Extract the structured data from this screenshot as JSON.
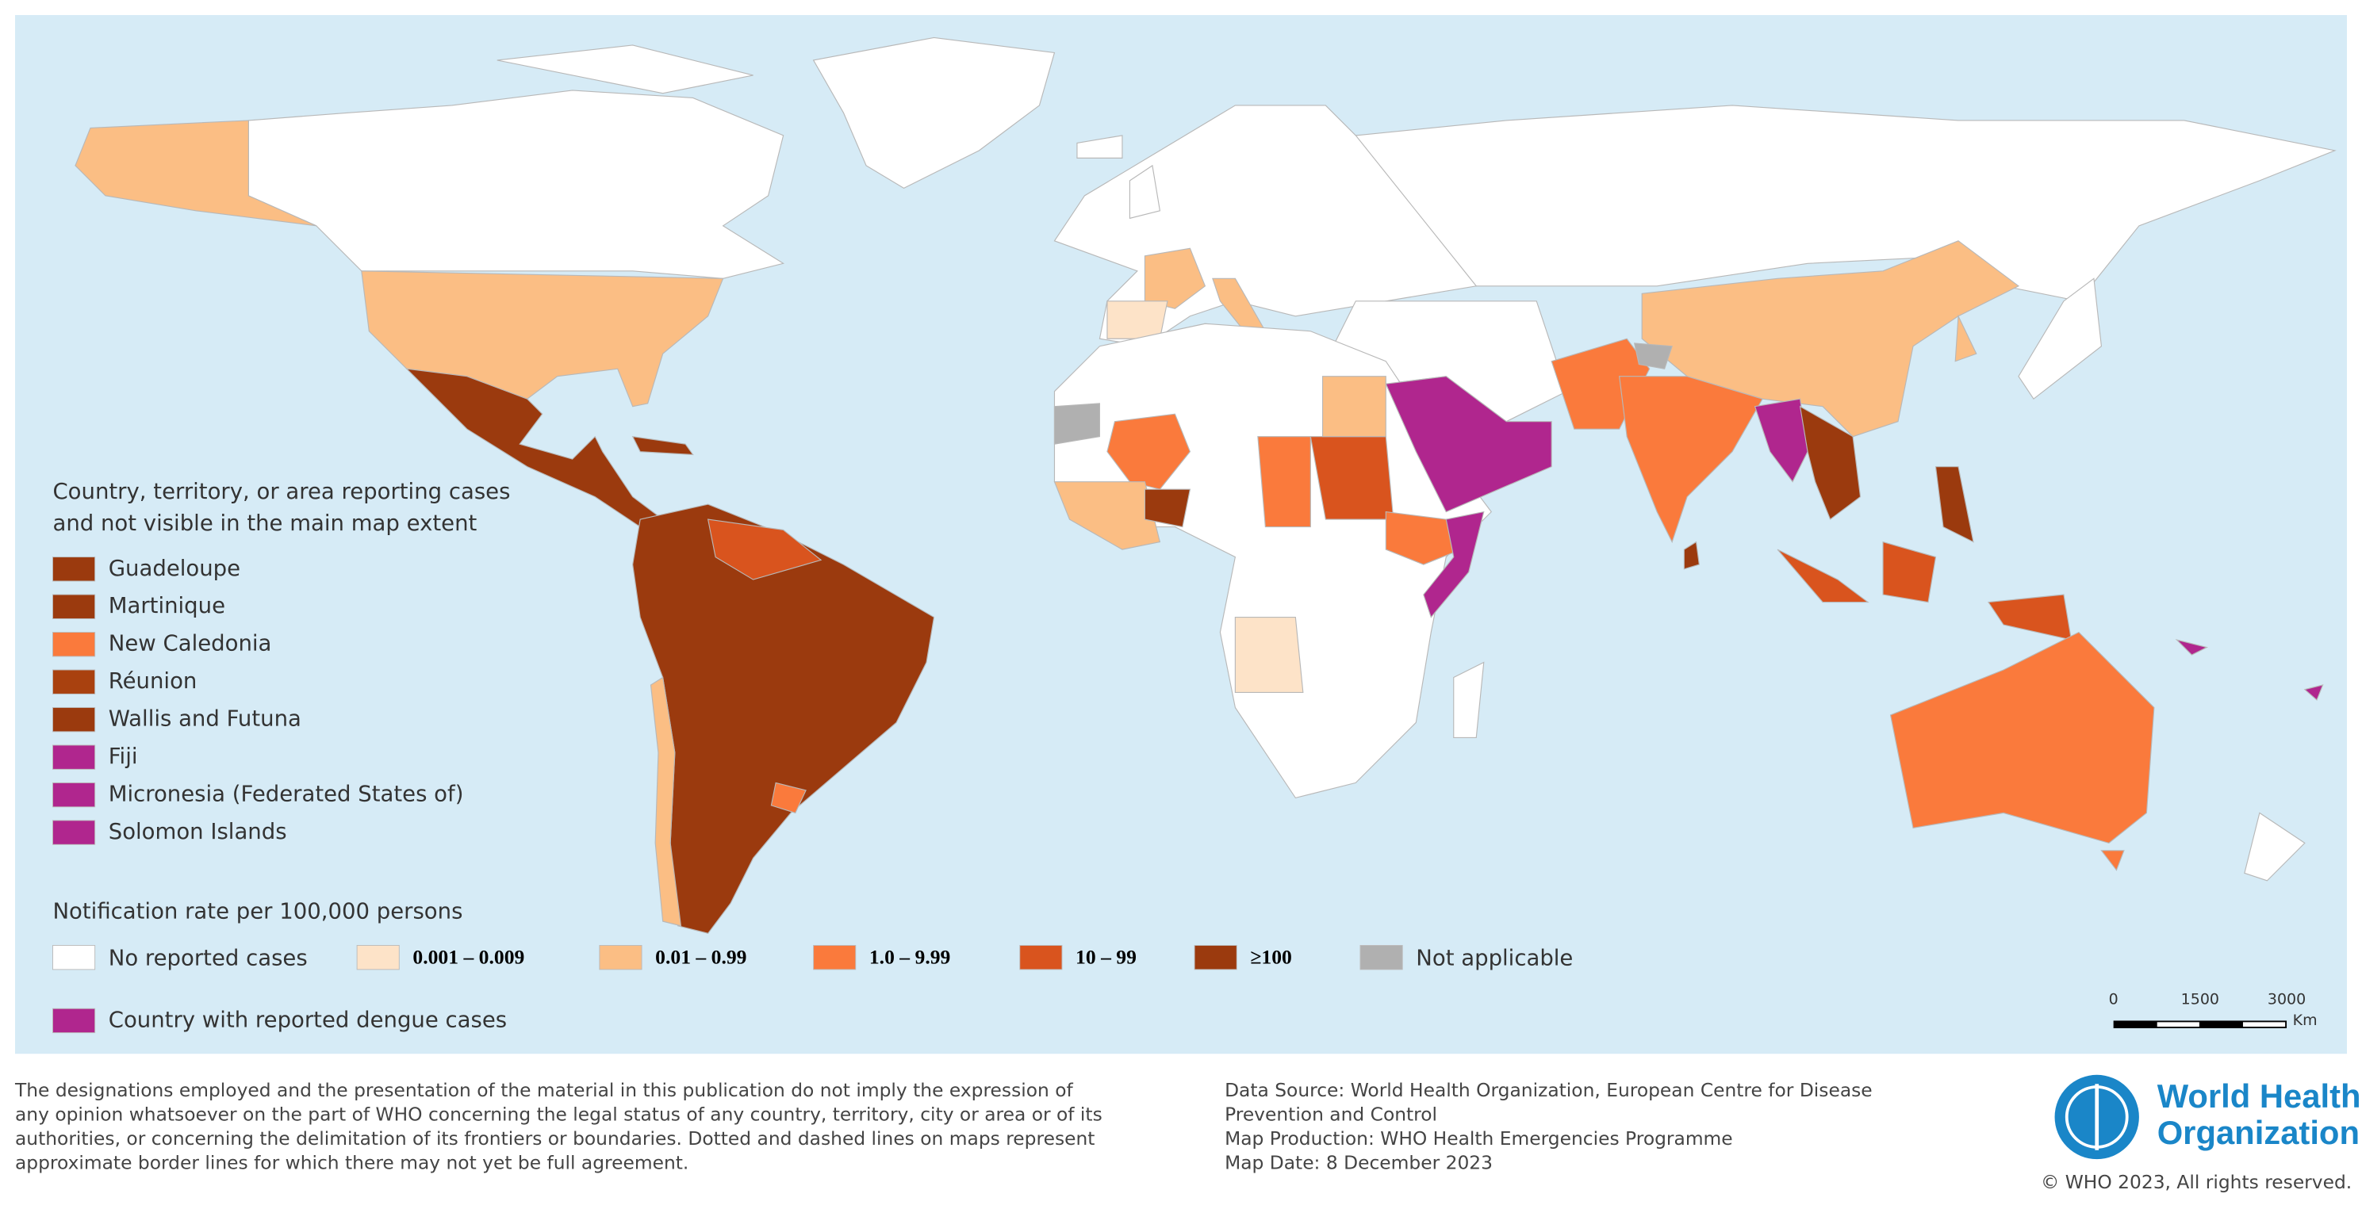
{
  "legend_reporting": {
    "title_lines": [
      "Country, territory, or area reporting cases",
      "and not visible in the main map extent"
    ],
    "items": [
      {
        "label": "Guadeloupe",
        "color": "#9b3a0e"
      },
      {
        "label": "Martinique",
        "color": "#9b3a0e"
      },
      {
        "label": "New Caledonia",
        "color": "#fa7a3c"
      },
      {
        "label": "Réunion",
        "color": "#a9410f"
      },
      {
        "label": "Wallis and Futuna",
        "color": "#9b3a0e"
      },
      {
        "label": "Fiji",
        "color": "#b0268e"
      },
      {
        "label": "Micronesia (Federated States of)",
        "color": "#b0268e"
      },
      {
        "label": "Solomon Islands",
        "color": "#b0268e"
      }
    ]
  },
  "legend_rate": {
    "title": "Notification rate per 100,000 persons",
    "items": [
      {
        "label": "No reported cases",
        "color": "#ffffff"
      },
      {
        "label": "0.001 – 0.009",
        "color": "#fde3c8"
      },
      {
        "label": "0.01 – 0.99",
        "color": "#fbbe84"
      },
      {
        "label": "1.0 – 9.99",
        "color": "#fa7a3c"
      },
      {
        "label": "10 – 99",
        "color": "#d9541e"
      },
      {
        "label": "≥100",
        "color": "#9b3a0e"
      },
      {
        "label": "Not applicable",
        "color": "#b0b0b0"
      }
    ]
  },
  "dengue_legend": {
    "label": "Country with reported dengue cases",
    "color": "#b0268e"
  },
  "scale_bar": {
    "ticks": [
      0,
      1500,
      3000
    ],
    "unit": "Km"
  },
  "footer": {
    "disclaimer": [
      "The designations employed and the presentation of the material in this publication do not imply the expression of",
      "any opinion whatsoever on the part of WHO concerning the legal status of any country, territory, city or area or of its",
      "authorities, or concerning the delimitation of its frontiers or boundaries. Dotted and dashed lines on maps represent",
      "approximate border lines for which there may not yet be full agreement."
    ],
    "source": [
      "Data Source: World Health Organization, European Centre for Disease",
      "Prevention and Control",
      "Map Production: WHO Health Emergencies Programme",
      "Map Date:  8 December 2023"
    ],
    "logo": [
      "World Health",
      "Organization"
    ],
    "copyright": "© WHO 2023, All rights reserved."
  }
}
